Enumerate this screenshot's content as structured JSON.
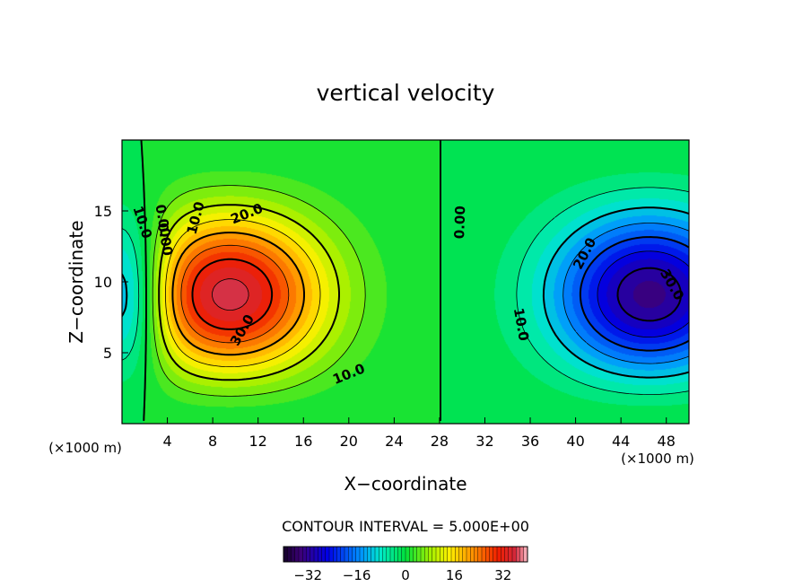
{
  "chart_data": {
    "type": "heatmap",
    "title": "vertical velocity",
    "xlabel": "X−coordinate",
    "ylabel": "Z−coordinate",
    "x_unit_left": "(×1000 m)",
    "x_unit_right": "(×1000 m)",
    "xlim": [
      0,
      50
    ],
    "ylim": [
      0,
      20
    ],
    "x_ticks": [
      4,
      8,
      12,
      16,
      20,
      24,
      28,
      32,
      36,
      40,
      44,
      48
    ],
    "y_ticks": [
      5,
      10,
      15
    ],
    "contour_interval_text": "CONTOUR INTERVAL = 5.000E+00",
    "contour_interval": 5,
    "colorbar": {
      "min": -40,
      "max": 40,
      "ticks": [
        -32,
        -16,
        0,
        16,
        32
      ],
      "tick_labels": [
        "−32",
        "−16",
        "0",
        "16",
        "32"
      ]
    },
    "cells": [
      {
        "x": 9.5,
        "z": 8.5,
        "amplitude": 37,
        "sigma_x": 6.0,
        "sigma_z": 5.2
      },
      {
        "x": 46.5,
        "z": 8.5,
        "amplitude": -34,
        "sigma_x": 6.0,
        "sigma_z": 5.2
      },
      {
        "x": 0.5,
        "z": 8.5,
        "amplitude": -22,
        "sigma_x": 2.4,
        "sigma_z": 5.0
      }
    ],
    "contour_labels": [
      {
        "text": "10.0",
        "x": 1.8,
        "z": 14.2,
        "angle": 72
      },
      {
        "text": "0.00",
        "x": 3.6,
        "z": 14.3,
        "angle": 80
      },
      {
        "text": "0.00",
        "x": 3.8,
        "z": 13.0,
        "angle": 80
      },
      {
        "text": "10.0",
        "x": 6.5,
        "z": 14.5,
        "angle": -75
      },
      {
        "text": "20.0",
        "x": 11.0,
        "z": 14.8,
        "angle": -22
      },
      {
        "text": "30.0",
        "x": 10.6,
        "z": 6.6,
        "angle": -60
      },
      {
        "text": "10.0",
        "x": 20.0,
        "z": 3.5,
        "angle": -22
      },
      {
        "text": "0.00",
        "x": 29.8,
        "z": 14.2,
        "angle": -88
      },
      {
        "text": "10.0",
        "x": 35.2,
        "z": 7.0,
        "angle": 80
      },
      {
        "text": "20.0",
        "x": 40.8,
        "z": 12.0,
        "angle": -62
      },
      {
        "text": "30.0",
        "x": 48.5,
        "z": 9.8,
        "angle": 60
      }
    ]
  }
}
